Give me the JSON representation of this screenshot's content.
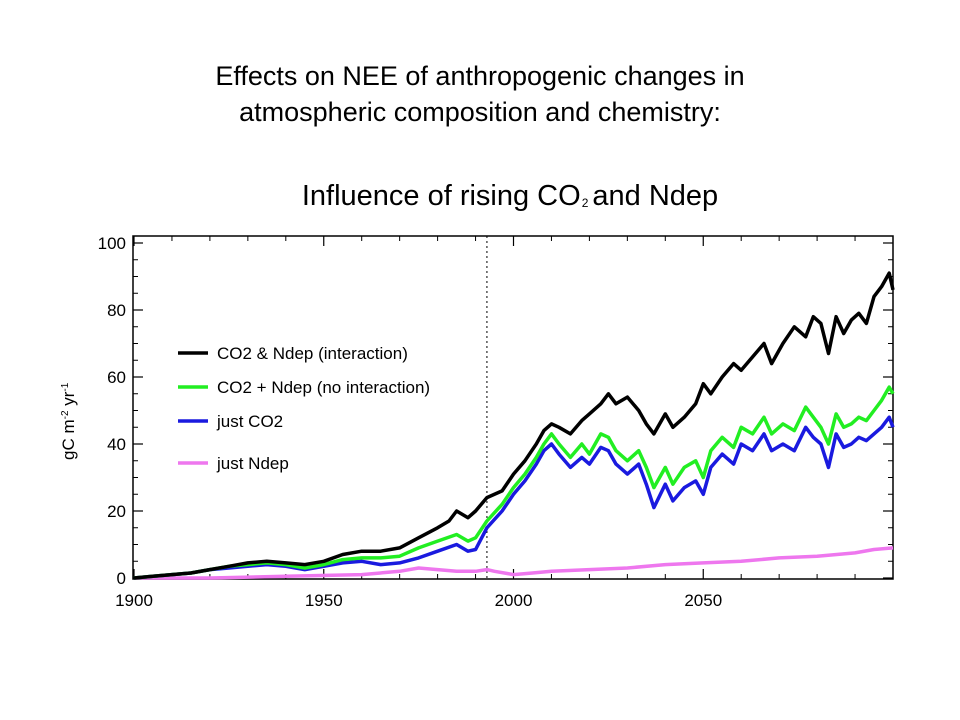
{
  "slide": {
    "title_line1": "Effects on NEE of anthropogenic changes in",
    "title_line2": "atmospheric composition and chemistry:"
  },
  "chart_data": {
    "type": "line",
    "title": "Influence of rising CO",
    "title_sub": "2",
    "title_after": "and Ndep",
    "ylabel": "gC m",
    "ylabel_sup1": "-2",
    "ylabel_mid": " yr",
    "ylabel_sup2": "-1",
    "xlim": [
      1900,
      2100
    ],
    "ylim": [
      0,
      100
    ],
    "x_ticks": [
      1900,
      1950,
      2000,
      2050
    ],
    "y_ticks": [
      0,
      20,
      40,
      60,
      80,
      100
    ],
    "reference_line_x": 1993,
    "legend_position": "upper-left",
    "series": [
      {
        "name": "CO2 & Ndep (interaction)",
        "color": "#000000",
        "points": [
          [
            1900,
            0
          ],
          [
            1905,
            0.5
          ],
          [
            1910,
            1
          ],
          [
            1915,
            1.5
          ],
          [
            1920,
            2.5
          ],
          [
            1925,
            3.5
          ],
          [
            1930,
            4.5
          ],
          [
            1935,
            5
          ],
          [
            1940,
            4.5
          ],
          [
            1945,
            4
          ],
          [
            1950,
            5
          ],
          [
            1955,
            7
          ],
          [
            1960,
            8
          ],
          [
            1965,
            8
          ],
          [
            1970,
            9
          ],
          [
            1975,
            12
          ],
          [
            1980,
            15
          ],
          [
            1983,
            17
          ],
          [
            1985,
            20
          ],
          [
            1988,
            18
          ],
          [
            1990,
            20
          ],
          [
            1993,
            24
          ],
          [
            1997,
            26
          ],
          [
            2000,
            31
          ],
          [
            2003,
            35
          ],
          [
            2006,
            40
          ],
          [
            2008,
            44
          ],
          [
            2010,
            46
          ],
          [
            2012,
            45
          ],
          [
            2015,
            43
          ],
          [
            2018,
            47
          ],
          [
            2020,
            49
          ],
          [
            2023,
            52
          ],
          [
            2025,
            55
          ],
          [
            2027,
            52
          ],
          [
            2030,
            54
          ],
          [
            2033,
            50
          ],
          [
            2035,
            46
          ],
          [
            2037,
            43
          ],
          [
            2040,
            49
          ],
          [
            2042,
            45
          ],
          [
            2045,
            48
          ],
          [
            2048,
            52
          ],
          [
            2050,
            58
          ],
          [
            2052,
            55
          ],
          [
            2055,
            60
          ],
          [
            2058,
            64
          ],
          [
            2060,
            62
          ],
          [
            2063,
            66
          ],
          [
            2066,
            70
          ],
          [
            2068,
            64
          ],
          [
            2071,
            70
          ],
          [
            2074,
            75
          ],
          [
            2077,
            72
          ],
          [
            2079,
            78
          ],
          [
            2081,
            76
          ],
          [
            2083,
            67
          ],
          [
            2085,
            78
          ],
          [
            2087,
            73
          ],
          [
            2089,
            77
          ],
          [
            2091,
            79
          ],
          [
            2093,
            76
          ],
          [
            2095,
            84
          ],
          [
            2097,
            87
          ],
          [
            2099,
            91
          ],
          [
            2100,
            86
          ]
        ]
      },
      {
        "name": "CO2 + Ndep (no interaction)",
        "color": "#22ee22",
        "points": [
          [
            1900,
            0
          ],
          [
            1905,
            0.5
          ],
          [
            1910,
            1
          ],
          [
            1915,
            1.5
          ],
          [
            1920,
            2.5
          ],
          [
            1925,
            3.5
          ],
          [
            1930,
            4
          ],
          [
            1935,
            4.5
          ],
          [
            1940,
            4
          ],
          [
            1945,
            3
          ],
          [
            1950,
            4
          ],
          [
            1955,
            5.5
          ],
          [
            1960,
            6
          ],
          [
            1965,
            6
          ],
          [
            1970,
            6.5
          ],
          [
            1975,
            9
          ],
          [
            1980,
            11
          ],
          [
            1985,
            13
          ],
          [
            1988,
            11
          ],
          [
            1990,
            12
          ],
          [
            1993,
            17
          ],
          [
            1997,
            22
          ],
          [
            2000,
            27
          ],
          [
            2003,
            31
          ],
          [
            2006,
            36
          ],
          [
            2008,
            40
          ],
          [
            2010,
            43
          ],
          [
            2012,
            40
          ],
          [
            2015,
            36
          ],
          [
            2018,
            40
          ],
          [
            2020,
            37
          ],
          [
            2023,
            43
          ],
          [
            2025,
            42
          ],
          [
            2027,
            38
          ],
          [
            2030,
            35
          ],
          [
            2033,
            38
          ],
          [
            2035,
            33
          ],
          [
            2037,
            27
          ],
          [
            2040,
            33
          ],
          [
            2042,
            28
          ],
          [
            2045,
            33
          ],
          [
            2048,
            35
          ],
          [
            2050,
            30
          ],
          [
            2052,
            38
          ],
          [
            2055,
            42
          ],
          [
            2058,
            39
          ],
          [
            2060,
            45
          ],
          [
            2063,
            43
          ],
          [
            2066,
            48
          ],
          [
            2068,
            43
          ],
          [
            2071,
            46
          ],
          [
            2074,
            44
          ],
          [
            2077,
            51
          ],
          [
            2079,
            48
          ],
          [
            2081,
            45
          ],
          [
            2083,
            40
          ],
          [
            2085,
            49
          ],
          [
            2087,
            45
          ],
          [
            2089,
            46
          ],
          [
            2091,
            48
          ],
          [
            2093,
            47
          ],
          [
            2095,
            50
          ],
          [
            2097,
            53
          ],
          [
            2099,
            57
          ],
          [
            2100,
            55
          ]
        ]
      },
      {
        "name": "just CO2",
        "color": "#1a1adf",
        "points": [
          [
            1900,
            0
          ],
          [
            1905,
            0.5
          ],
          [
            1910,
            1
          ],
          [
            1915,
            1.5
          ],
          [
            1920,
            2.5
          ],
          [
            1925,
            3
          ],
          [
            1930,
            3.5
          ],
          [
            1935,
            4
          ],
          [
            1940,
            3.5
          ],
          [
            1945,
            2.5
          ],
          [
            1950,
            3.5
          ],
          [
            1955,
            4.5
          ],
          [
            1960,
            5
          ],
          [
            1965,
            4
          ],
          [
            1970,
            4.5
          ],
          [
            1975,
            6
          ],
          [
            1980,
            8
          ],
          [
            1985,
            10
          ],
          [
            1988,
            8
          ],
          [
            1990,
            8.5
          ],
          [
            1993,
            15
          ],
          [
            1997,
            20
          ],
          [
            2000,
            25
          ],
          [
            2003,
            29
          ],
          [
            2006,
            34
          ],
          [
            2008,
            38
          ],
          [
            2010,
            40
          ],
          [
            2012,
            37
          ],
          [
            2015,
            33
          ],
          [
            2018,
            36
          ],
          [
            2020,
            34
          ],
          [
            2023,
            39
          ],
          [
            2025,
            38
          ],
          [
            2027,
            34
          ],
          [
            2030,
            31
          ],
          [
            2033,
            34
          ],
          [
            2035,
            28
          ],
          [
            2037,
            21
          ],
          [
            2040,
            28
          ],
          [
            2042,
            23
          ],
          [
            2045,
            27
          ],
          [
            2048,
            29
          ],
          [
            2050,
            25
          ],
          [
            2052,
            33
          ],
          [
            2055,
            37
          ],
          [
            2058,
            34
          ],
          [
            2060,
            40
          ],
          [
            2063,
            38
          ],
          [
            2066,
            43
          ],
          [
            2068,
            38
          ],
          [
            2071,
            40
          ],
          [
            2074,
            38
          ],
          [
            2077,
            45
          ],
          [
            2079,
            42
          ],
          [
            2081,
            40
          ],
          [
            2083,
            33
          ],
          [
            2085,
            43
          ],
          [
            2087,
            39
          ],
          [
            2089,
            40
          ],
          [
            2091,
            42
          ],
          [
            2093,
            41
          ],
          [
            2095,
            43
          ],
          [
            2097,
            45
          ],
          [
            2099,
            48
          ],
          [
            2100,
            45
          ]
        ]
      },
      {
        "name": "just Ndep",
        "color": "#ee77ee",
        "points": [
          [
            1900,
            0
          ],
          [
            1920,
            0
          ],
          [
            1940,
            0.5
          ],
          [
            1960,
            1
          ],
          [
            1970,
            2
          ],
          [
            1975,
            3
          ],
          [
            1980,
            2.5
          ],
          [
            1985,
            2
          ],
          [
            1990,
            2
          ],
          [
            1993,
            2.5
          ],
          [
            1995,
            2
          ],
          [
            2000,
            1
          ],
          [
            2005,
            1.5
          ],
          [
            2010,
            2
          ],
          [
            2020,
            2.5
          ],
          [
            2030,
            3
          ],
          [
            2040,
            4
          ],
          [
            2050,
            4.5
          ],
          [
            2060,
            5
          ],
          [
            2070,
            6
          ],
          [
            2080,
            6.5
          ],
          [
            2090,
            7.5
          ],
          [
            2095,
            8.5
          ],
          [
            2100,
            9
          ]
        ]
      }
    ]
  }
}
